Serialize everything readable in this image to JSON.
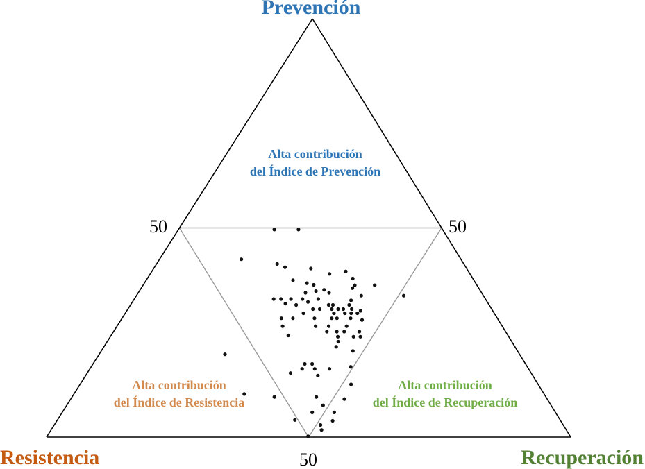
{
  "chart_data": {
    "type": "scatter",
    "subtype": "ternary",
    "vertices": {
      "top": {
        "label": "Prevención",
        "color": "#2e75b6"
      },
      "left": {
        "label": "Resistencia",
        "color": "#c55a11"
      },
      "right": {
        "label": "Recuperación",
        "color": "#548235"
      }
    },
    "midpoint_labels": {
      "left_edge": "50",
      "right_edge": "50",
      "bottom_edge": "50"
    },
    "regions": [
      {
        "id": "prevencion",
        "lines": [
          "Alta contribución",
          "del Índice de Prevención"
        ],
        "color": "#2e75b6"
      },
      {
        "id": "resistencia",
        "lines": [
          "Alta contribución",
          "del Índice de Resistencia"
        ],
        "color": "#d28a4e"
      },
      {
        "id": "recuperacion",
        "lines": [
          "Alta contribución",
          "del Índice de Recuperación"
        ],
        "color": "#70ad47"
      }
    ],
    "points_order": [
      "prevencion",
      "resistencia",
      "recuperacion"
    ],
    "points": [
      [
        0.496,
        0.321,
        0.183
      ],
      [
        0.496,
        0.275,
        0.229
      ],
      [
        0.425,
        0.419,
        0.156
      ],
      [
        0.414,
        0.356,
        0.23
      ],
      [
        0.406,
        0.345,
        0.249
      ],
      [
        0.403,
        0.297,
        0.3
      ],
      [
        0.396,
        0.234,
        0.37
      ],
      [
        0.39,
        0.268,
        0.342
      ],
      [
        0.379,
        0.229,
        0.392
      ],
      [
        0.375,
        0.345,
        0.28
      ],
      [
        0.368,
        0.322,
        0.31
      ],
      [
        0.364,
        0.311,
        0.325
      ],
      [
        0.363,
        0.233,
        0.404
      ],
      [
        0.363,
        0.195,
        0.442
      ],
      [
        0.356,
        0.241,
        0.403
      ],
      [
        0.352,
        0.297,
        0.351
      ],
      [
        0.349,
        0.314,
        0.337
      ],
      [
        0.345,
        0.336,
        0.319
      ],
      [
        0.345,
        0.291,
        0.364
      ],
      [
        0.338,
        0.233,
        0.429
      ],
      [
        0.338,
        0.152,
        0.51
      ],
      [
        0.33,
        0.404,
        0.266
      ],
      [
        0.33,
        0.39,
        0.28
      ],
      [
        0.33,
        0.371,
        0.299
      ],
      [
        0.33,
        0.349,
        0.321
      ],
      [
        0.33,
        0.319,
        0.351
      ],
      [
        0.327,
        0.258,
        0.415
      ],
      [
        0.323,
        0.342,
        0.335
      ],
      [
        0.319,
        0.387,
        0.294
      ],
      [
        0.316,
        0.368,
        0.316
      ],
      [
        0.316,
        0.306,
        0.378
      ],
      [
        0.316,
        0.298,
        0.386
      ],
      [
        0.316,
        0.267,
        0.417
      ],
      [
        0.306,
        0.341,
        0.353
      ],
      [
        0.306,
        0.328,
        0.366
      ],
      [
        0.306,
        0.305,
        0.389
      ],
      [
        0.306,
        0.293,
        0.401
      ],
      [
        0.306,
        0.283,
        0.411
      ],
      [
        0.306,
        0.267,
        0.427
      ],
      [
        0.302,
        0.252,
        0.446
      ],
      [
        0.296,
        0.364,
        0.34
      ],
      [
        0.296,
        0.306,
        0.398
      ],
      [
        0.296,
        0.285,
        0.419
      ],
      [
        0.296,
        0.273,
        0.431
      ],
      [
        0.296,
        0.261,
        0.443
      ],
      [
        0.284,
        0.412,
        0.304
      ],
      [
        0.284,
        0.39,
        0.326
      ],
      [
        0.284,
        0.349,
        0.367
      ],
      [
        0.284,
        0.316,
        0.4
      ],
      [
        0.284,
        0.306,
        0.41
      ],
      [
        0.284,
        0.28,
        0.436
      ],
      [
        0.28,
        0.26,
        0.46
      ],
      [
        0.265,
        0.419,
        0.316
      ],
      [
        0.265,
        0.356,
        0.379
      ],
      [
        0.265,
        0.331,
        0.404
      ],
      [
        0.265,
        0.297,
        0.438
      ],
      [
        0.252,
        0.341,
        0.407
      ],
      [
        0.252,
        0.322,
        0.426
      ],
      [
        0.252,
        0.308,
        0.44
      ],
      [
        0.252,
        0.279,
        0.469
      ],
      [
        0.243,
        0.419,
        0.338
      ],
      [
        0.24,
        0.296,
        0.464
      ],
      [
        0.24,
        0.283,
        0.477
      ],
      [
        0.24,
        0.326,
        0.434
      ],
      [
        0.228,
        0.331,
        0.441
      ],
      [
        0.216,
        0.341,
        0.443
      ],
      [
        0.206,
        0.314,
        0.48
      ],
      [
        0.198,
        0.562,
        0.24
      ],
      [
        0.175,
        0.421,
        0.404
      ],
      [
        0.175,
        0.407,
        0.418
      ],
      [
        0.168,
        0.337,
        0.495
      ],
      [
        0.163,
        0.432,
        0.405
      ],
      [
        0.163,
        0.408,
        0.429
      ],
      [
        0.163,
        0.38,
        0.457
      ],
      [
        0.153,
        0.459,
        0.388
      ],
      [
        0.147,
        0.41,
        0.443
      ],
      [
        0.126,
        0.357,
        0.517
      ],
      [
        0.103,
        0.572,
        0.325
      ],
      [
        0.096,
        0.518,
        0.386
      ],
      [
        0.096,
        0.438,
        0.466
      ],
      [
        0.091,
        0.387,
        0.522
      ],
      [
        0.076,
        0.435,
        0.489
      ],
      [
        0.059,
        0.464,
        0.477
      ],
      [
        0.059,
        0.422,
        0.519
      ],
      [
        0.041,
        0.506,
        0.453
      ],
      [
        0.039,
        0.435,
        0.526
      ],
      [
        0.029,
        0.463,
        0.508
      ],
      [
        0.017,
        0.467,
        0.516
      ],
      [
        0.002,
        0.5,
        0.498
      ]
    ],
    "colors": {
      "axes": "#000000",
      "inner_lines": "#999999",
      "points": "#111111"
    }
  }
}
